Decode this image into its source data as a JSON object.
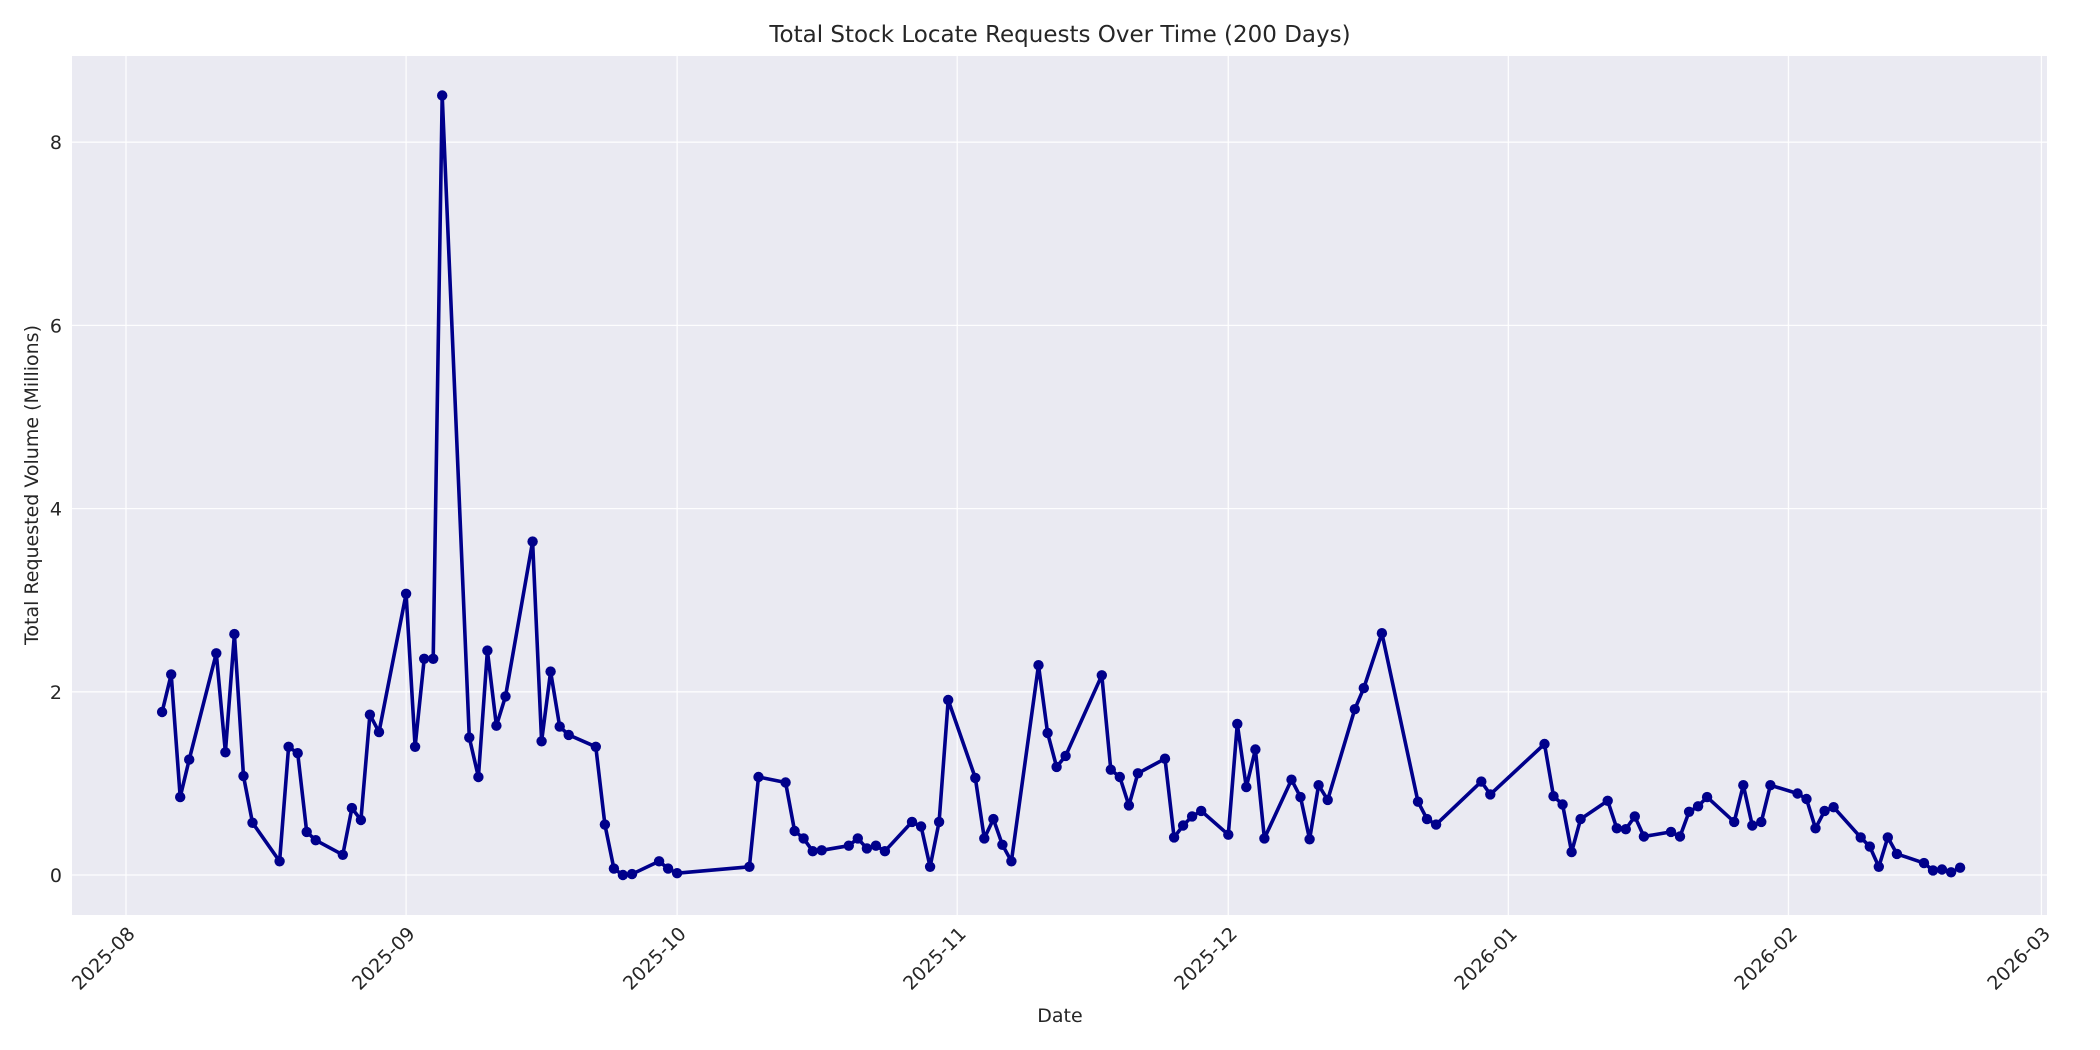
{
  "chart_data": {
    "type": "line",
    "title": "Total Stock Locate Requests Over Time (200 Days)",
    "xlabel": "Date",
    "ylabel": "Total Requested Volume (Millions)",
    "x_tick_labels": [
      "2025-08",
      "2025-09",
      "2025-10",
      "2025-11",
      "2025-12",
      "2026-01",
      "2026-02",
      "2026-03"
    ],
    "y_tick_labels": [
      "0",
      "2",
      "4",
      "6",
      "8"
    ],
    "y_ticks": [
      0,
      2,
      4,
      6,
      8
    ],
    "ylim": [
      -0.42,
      8.95
    ],
    "xlim": [
      "2025-07-26",
      "2026-03-01"
    ],
    "grid": true,
    "legend": null,
    "line_color": "#00008B",
    "background_color": "#EAEAF2",
    "series": [
      {
        "name": "Total Requested Volume",
        "x": [
          "2025-08-05",
          "2025-08-06",
          "2025-08-07",
          "2025-08-08",
          "2025-08-11",
          "2025-08-12",
          "2025-08-13",
          "2025-08-14",
          "2025-08-15",
          "2025-08-18",
          "2025-08-19",
          "2025-08-20",
          "2025-08-21",
          "2025-08-22",
          "2025-08-25",
          "2025-08-26",
          "2025-08-27",
          "2025-08-28",
          "2025-08-29",
          "2025-09-01",
          "2025-09-02",
          "2025-09-03",
          "2025-09-04",
          "2025-09-05",
          "2025-09-08",
          "2025-09-09",
          "2025-09-10",
          "2025-09-11",
          "2025-09-12",
          "2025-09-15",
          "2025-09-16",
          "2025-09-17",
          "2025-09-18",
          "2025-09-19",
          "2025-09-22",
          "2025-09-23",
          "2025-09-24",
          "2025-09-25",
          "2025-09-26",
          "2025-09-29",
          "2025-09-30",
          "2025-10-01",
          "2025-10-09",
          "2025-10-10",
          "2025-10-13",
          "2025-10-14",
          "2025-10-15",
          "2025-10-16",
          "2025-10-17",
          "2025-10-20",
          "2025-10-21",
          "2025-10-22",
          "2025-10-23",
          "2025-10-24",
          "2025-10-27",
          "2025-10-28",
          "2025-10-29",
          "2025-10-30",
          "2025-10-31",
          "2025-11-03",
          "2025-11-04",
          "2025-11-05",
          "2025-11-06",
          "2025-11-07",
          "2025-11-10",
          "2025-11-11",
          "2025-11-12",
          "2025-11-13",
          "2025-11-17",
          "2025-11-18",
          "2025-11-19",
          "2025-11-20",
          "2025-11-21",
          "2025-11-24",
          "2025-11-25",
          "2025-11-26",
          "2025-11-27",
          "2025-11-28",
          "2025-12-01",
          "2025-12-02",
          "2025-12-03",
          "2025-12-04",
          "2025-12-05",
          "2025-12-08",
          "2025-12-09",
          "2025-12-10",
          "2025-12-11",
          "2025-12-12",
          "2025-12-15",
          "2025-12-16",
          "2025-12-18",
          "2025-12-22",
          "2025-12-23",
          "2025-12-24",
          "2025-12-29",
          "2025-12-30",
          "2026-01-05",
          "2026-01-06",
          "2026-01-07",
          "2026-01-08",
          "2026-01-09",
          "2026-01-12",
          "2026-01-13",
          "2026-01-14",
          "2026-01-15",
          "2026-01-16",
          "2026-01-19",
          "2026-01-20",
          "2026-01-21",
          "2026-01-22",
          "2026-01-23",
          "2026-01-26",
          "2026-01-27",
          "2026-01-28",
          "2026-01-29",
          "2026-01-30",
          "2026-02-02",
          "2026-02-03",
          "2026-02-04",
          "2026-02-05",
          "2026-02-06",
          "2026-02-09",
          "2026-02-10",
          "2026-02-11",
          "2026-02-12",
          "2026-02-13",
          "2026-02-16",
          "2026-02-17",
          "2026-02-18",
          "2026-02-19",
          "2026-02-20"
        ],
        "values": [
          1.78,
          2.19,
          0.85,
          1.26,
          2.42,
          1.34,
          2.63,
          1.08,
          0.57,
          0.15,
          1.4,
          1.33,
          0.47,
          0.38,
          0.22,
          0.73,
          0.6,
          1.75,
          1.56,
          3.07,
          1.4,
          2.36,
          2.36,
          8.51,
          1.5,
          1.07,
          2.45,
          1.63,
          1.95,
          3.64,
          1.46,
          2.22,
          1.62,
          1.53,
          1.4,
          0.55,
          0.07,
          0.0,
          0.01,
          0.15,
          0.07,
          0.02,
          0.09,
          1.07,
          1.01,
          0.48,
          0.4,
          0.26,
          0.27,
          0.32,
          0.4,
          0.29,
          0.32,
          0.26,
          0.58,
          0.53,
          0.09,
          0.58,
          1.91,
          1.06,
          0.4,
          0.61,
          0.33,
          0.15,
          2.29,
          1.55,
          1.18,
          1.3,
          2.18,
          1.15,
          1.07,
          0.76,
          1.11,
          1.27,
          0.41,
          0.54,
          0.64,
          0.7,
          0.44,
          1.65,
          0.96,
          1.37,
          0.4,
          1.04,
          0.85,
          0.39,
          0.98,
          0.82,
          1.81,
          2.04,
          2.64,
          0.8,
          0.61,
          0.55,
          1.02,
          0.88,
          1.43,
          0.86,
          0.77,
          0.25,
          0.61,
          0.81,
          0.51,
          0.5,
          0.64,
          0.42,
          0.47,
          0.42,
          0.69,
          0.75,
          0.85,
          0.58,
          0.98,
          0.54,
          0.58,
          0.98,
          0.89,
          0.83,
          0.51,
          0.7,
          0.74,
          0.41,
          0.31,
          0.09,
          0.41,
          0.23,
          0.13,
          0.05,
          0.06,
          0.03,
          0.08
        ]
      }
    ]
  }
}
